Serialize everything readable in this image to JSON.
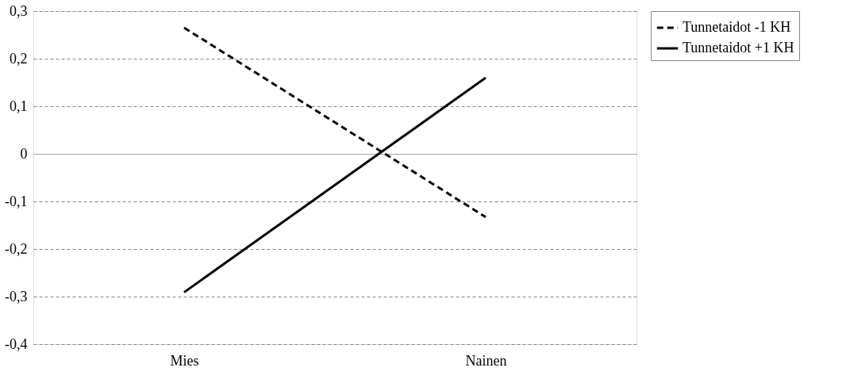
{
  "chart_data": {
    "type": "line",
    "categories": [
      "Mies",
      "Nainen"
    ],
    "series": [
      {
        "name": "Tunnetaidot -1 KH",
        "color": "#000000",
        "line_style": "dashed",
        "values": [
          0.265,
          -0.133
        ]
      },
      {
        "name": "Tunnetaidot +1 KH",
        "color": "#000000",
        "line_style": "solid",
        "values": [
          -0.291,
          0.16
        ]
      }
    ],
    "ylim": [
      -0.4,
      0.3
    ],
    "yticks": [
      {
        "value": -0.4,
        "label": "-0,4"
      },
      {
        "value": -0.3,
        "label": "-0,3"
      },
      {
        "value": -0.2,
        "label": "-0,2"
      },
      {
        "value": -0.1,
        "label": "-0,1"
      },
      {
        "value": 0,
        "label": "0"
      },
      {
        "value": 0.1,
        "label": "0,1"
      },
      {
        "value": 0.2,
        "label": "0,2"
      },
      {
        "value": 0.3,
        "label": "0,3"
      }
    ],
    "grid": "y",
    "legend": "right",
    "marker": "none"
  }
}
